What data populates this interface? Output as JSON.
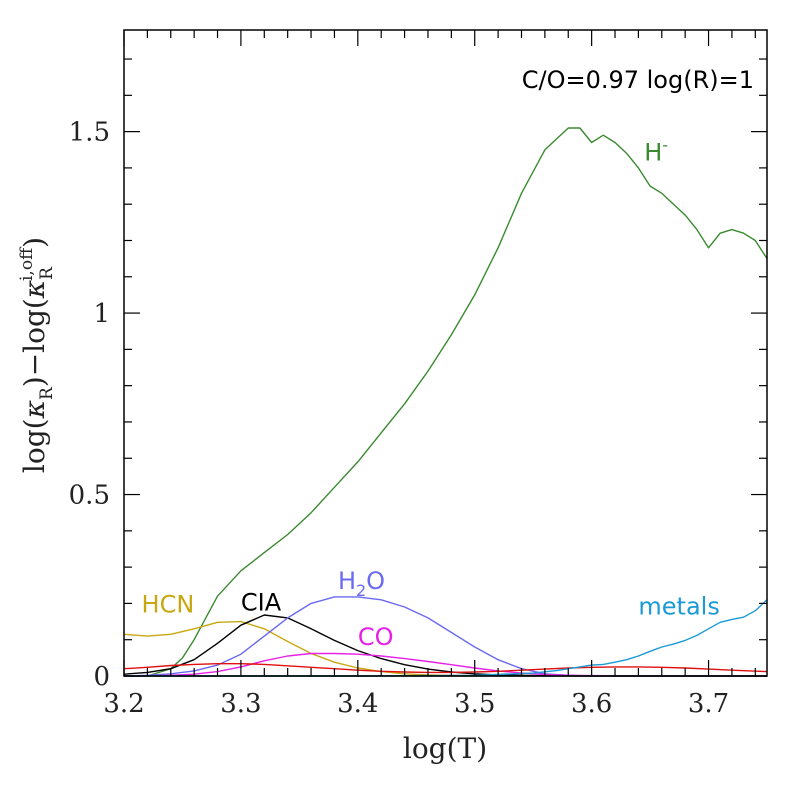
{
  "chart_data": {
    "type": "line",
    "annotation": "C/O=0.97  log(R)=1",
    "xlabel": "log(T)",
    "ylabel": {
      "part1": "log(",
      "kappa": "κ",
      "sub1": "R",
      "part2": ")−log(",
      "kappa2": "κ",
      "sub2": "R",
      "sup2": "i,off",
      "part3": ")"
    },
    "xlim": [
      3.2,
      3.75
    ],
    "ylim": [
      0,
      1.78
    ],
    "x_ticks": [
      3.2,
      3.3,
      3.4,
      3.5,
      3.6,
      3.7
    ],
    "x_tick_labels": [
      "3.2",
      "3.3",
      "3.4",
      "3.5",
      "3.6",
      "3.7"
    ],
    "x_minor_step": 0.02,
    "y_ticks": [
      0,
      0.5,
      1,
      1.5
    ],
    "y_tick_labels": [
      "0",
      "0.5",
      "1",
      "1.5"
    ],
    "y_minor_step": 0.1,
    "grid": false,
    "series": [
      {
        "name": "H-",
        "label": {
          "base": "H",
          "sup": "-",
          "sub": "",
          "tail": "",
          "x": 3.645,
          "y": 1.42
        },
        "color": "#3a8a30",
        "x": [
          3.2,
          3.22,
          3.24,
          3.25,
          3.26,
          3.27,
          3.28,
          3.3,
          3.32,
          3.34,
          3.36,
          3.38,
          3.4,
          3.42,
          3.44,
          3.46,
          3.48,
          3.5,
          3.52,
          3.54,
          3.56,
          3.57,
          3.58,
          3.59,
          3.6,
          3.61,
          3.62,
          3.63,
          3.64,
          3.65,
          3.66,
          3.67,
          3.68,
          3.69,
          3.7,
          3.71,
          3.72,
          3.73,
          3.74,
          3.75
        ],
        "y": [
          0.0,
          0.0,
          0.02,
          0.05,
          0.1,
          0.16,
          0.22,
          0.29,
          0.34,
          0.39,
          0.45,
          0.52,
          0.59,
          0.67,
          0.75,
          0.84,
          0.94,
          1.05,
          1.18,
          1.33,
          1.45,
          1.48,
          1.51,
          1.51,
          1.47,
          1.49,
          1.47,
          1.44,
          1.4,
          1.35,
          1.33,
          1.3,
          1.27,
          1.23,
          1.18,
          1.22,
          1.23,
          1.22,
          1.2,
          1.15
        ]
      },
      {
        "name": "HCN",
        "label": {
          "base": "HCN",
          "sup": "",
          "sub": "",
          "tail": "",
          "x": 3.215,
          "y": 0.175
        },
        "color": "#c8a812",
        "x": [
          3.2,
          3.22,
          3.24,
          3.26,
          3.28,
          3.3,
          3.32,
          3.34,
          3.36,
          3.38,
          3.4,
          3.42,
          3.44,
          3.46,
          3.48,
          3.5,
          3.55,
          3.6,
          3.7,
          3.75
        ],
        "y": [
          0.115,
          0.11,
          0.115,
          0.13,
          0.148,
          0.15,
          0.13,
          0.095,
          0.062,
          0.038,
          0.022,
          0.012,
          0.006,
          0.003,
          0.0015,
          0.001,
          0.0,
          0.0,
          0.0,
          0.0
        ]
      },
      {
        "name": "CIA",
        "label": {
          "base": "CIA",
          "sup": "",
          "sub": "",
          "tail": "",
          "x": 3.3,
          "y": 0.18
        },
        "color": "#000000",
        "x": [
          3.2,
          3.22,
          3.24,
          3.26,
          3.28,
          3.3,
          3.32,
          3.34,
          3.36,
          3.38,
          3.4,
          3.42,
          3.44,
          3.46,
          3.48,
          3.5,
          3.52,
          3.55,
          3.6,
          3.7,
          3.75
        ],
        "y": [
          0.005,
          0.01,
          0.02,
          0.045,
          0.09,
          0.14,
          0.168,
          0.16,
          0.13,
          0.098,
          0.07,
          0.048,
          0.031,
          0.019,
          0.011,
          0.006,
          0.003,
          0.001,
          0.0,
          0.0,
          0.0
        ]
      },
      {
        "name": "H2O",
        "label": {
          "base": "H",
          "sup": "",
          "sub": "2",
          "tail": "O",
          "x": 3.383,
          "y": 0.24
        },
        "color": "#6a6af0",
        "x": [
          3.2,
          3.22,
          3.24,
          3.26,
          3.28,
          3.3,
          3.32,
          3.34,
          3.36,
          3.38,
          3.4,
          3.42,
          3.44,
          3.46,
          3.48,
          3.5,
          3.52,
          3.54,
          3.56,
          3.58,
          3.6,
          3.65,
          3.7,
          3.75
        ],
        "y": [
          0.0,
          0.002,
          0.006,
          0.014,
          0.03,
          0.06,
          0.11,
          0.16,
          0.2,
          0.218,
          0.218,
          0.21,
          0.19,
          0.16,
          0.12,
          0.08,
          0.045,
          0.02,
          0.006,
          0.002,
          0.0,
          0.0,
          0.0,
          0.0
        ]
      },
      {
        "name": "CO",
        "label": {
          "base": "CO",
          "sup": "",
          "sub": "",
          "tail": "",
          "x": 3.4,
          "y": 0.085
        },
        "color": "#e620e6",
        "x": [
          3.2,
          3.22,
          3.24,
          3.26,
          3.28,
          3.3,
          3.32,
          3.34,
          3.36,
          3.38,
          3.4,
          3.42,
          3.44,
          3.46,
          3.48,
          3.5,
          3.52,
          3.54,
          3.56,
          3.58,
          3.6,
          3.65,
          3.7,
          3.75
        ],
        "y": [
          0.0,
          0.0,
          0.002,
          0.005,
          0.012,
          0.025,
          0.042,
          0.055,
          0.062,
          0.062,
          0.06,
          0.055,
          0.048,
          0.04,
          0.031,
          0.022,
          0.014,
          0.008,
          0.004,
          0.002,
          0.001,
          0.0,
          0.0,
          0.0
        ]
      },
      {
        "name": "red",
        "label": {
          "base": "",
          "sup": "",
          "sub": "",
          "tail": "",
          "x": 0,
          "y": 0
        },
        "color": "#e01010",
        "x": [
          3.2,
          3.22,
          3.24,
          3.26,
          3.28,
          3.3,
          3.32,
          3.34,
          3.36,
          3.38,
          3.4,
          3.42,
          3.44,
          3.46,
          3.48,
          3.5,
          3.52,
          3.54,
          3.56,
          3.58,
          3.6,
          3.62,
          3.64,
          3.66,
          3.68,
          3.7,
          3.72,
          3.75
        ],
        "y": [
          0.02,
          0.024,
          0.029,
          0.032,
          0.034,
          0.034,
          0.032,
          0.028,
          0.024,
          0.02,
          0.016,
          0.013,
          0.011,
          0.01,
          0.01,
          0.011,
          0.013,
          0.016,
          0.019,
          0.022,
          0.024,
          0.025,
          0.025,
          0.024,
          0.022,
          0.019,
          0.016,
          0.012
        ]
      },
      {
        "name": "metals",
        "label": {
          "base": "metals",
          "sup": "",
          "sub": "",
          "tail": "",
          "x": 3.64,
          "y": 0.17
        },
        "color": "#1a9ad6",
        "x": [
          3.2,
          3.3,
          3.4,
          3.5,
          3.55,
          3.57,
          3.58,
          3.59,
          3.6,
          3.61,
          3.62,
          3.63,
          3.64,
          3.65,
          3.66,
          3.67,
          3.68,
          3.69,
          3.7,
          3.71,
          3.72,
          3.73,
          3.74,
          3.75
        ],
        "y": [
          0.0,
          0.0,
          0.0,
          0.002,
          0.008,
          0.015,
          0.02,
          0.025,
          0.03,
          0.032,
          0.038,
          0.045,
          0.055,
          0.068,
          0.08,
          0.088,
          0.098,
          0.112,
          0.13,
          0.148,
          0.156,
          0.162,
          0.18,
          0.21
        ]
      },
      {
        "name": "baseline",
        "label": {
          "base": "",
          "sup": "",
          "sub": "",
          "tail": "",
          "x": 0,
          "y": 0
        },
        "color": "#1a5a5a",
        "x": [
          3.2,
          3.75
        ],
        "y": [
          0.0,
          0.0
        ]
      }
    ]
  }
}
